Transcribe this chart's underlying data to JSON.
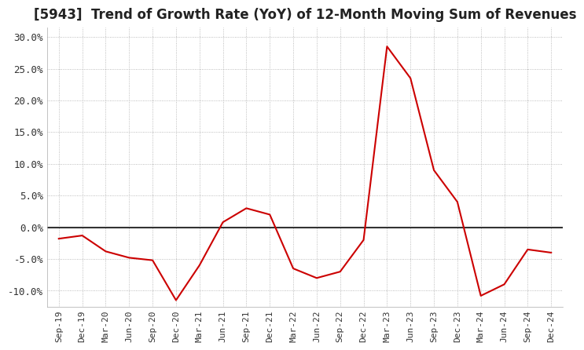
{
  "title": "[5943]  Trend of Growth Rate (YoY) of 12-Month Moving Sum of Revenues",
  "title_fontsize": 12,
  "ylim": [
    -0.125,
    0.315
  ],
  "yticks": [
    -0.1,
    -0.05,
    0.0,
    0.05,
    0.1,
    0.15,
    0.2,
    0.25,
    0.3
  ],
  "ytick_labels": [
    "-10.0%",
    "-5.0%",
    "0.0%",
    "5.0%",
    "10.0%",
    "15.0%",
    "20.0%",
    "25.0%",
    "30.0%"
  ],
  "line_color": "#cc0000",
  "background_color": "#ffffff",
  "grid_color": "#aaaaaa",
  "x_labels": [
    "Sep-19",
    "Dec-19",
    "Mar-20",
    "Jun-20",
    "Sep-20",
    "Dec-20",
    "Mar-21",
    "Jun-21",
    "Sep-21",
    "Dec-21",
    "Mar-22",
    "Jun-22",
    "Sep-22",
    "Dec-22",
    "Mar-23",
    "Jun-23",
    "Sep-23",
    "Dec-23",
    "Mar-24",
    "Jun-24",
    "Sep-24",
    "Dec-24"
  ],
  "y_values": [
    -0.018,
    -0.013,
    -0.038,
    -0.048,
    -0.052,
    -0.115,
    -0.06,
    0.008,
    0.03,
    0.02,
    -0.065,
    -0.08,
    -0.07,
    -0.02,
    0.285,
    0.235,
    0.09,
    0.04,
    -0.108,
    -0.09,
    -0.035,
    -0.04
  ]
}
